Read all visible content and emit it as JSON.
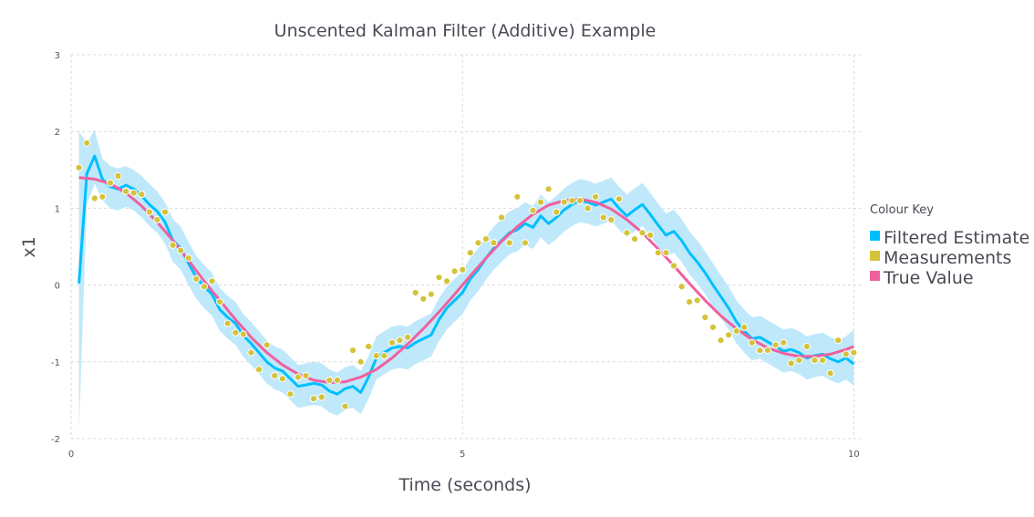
{
  "chart_data": {
    "type": "line",
    "title": "Unscented Kalman Filter (Additive) Example",
    "xlabel": "Time (seconds)",
    "ylabel": "x1",
    "xlim": [
      0,
      10.1
    ],
    "ylim": [
      -2,
      3
    ],
    "xticks": [
      0,
      5,
      10
    ],
    "yticks": [
      -2,
      -1,
      0,
      1,
      2,
      3
    ],
    "grid": true,
    "legend": {
      "title": "Colour Key",
      "placement": "right",
      "entries": [
        "Filtered Estimate",
        "Measurements",
        "True Value"
      ]
    },
    "colors": {
      "filtered": "#00bfff",
      "band": "#bfe9fb",
      "measurements": "#d4c33a",
      "true_value": "#f0609e"
    },
    "series": [
      {
        "name": "True Value",
        "type": "line",
        "x": [
          0.1,
          0.3,
          0.5,
          0.7,
          0.9,
          1.1,
          1.3,
          1.5,
          1.7,
          1.9,
          2.1,
          2.3,
          2.5,
          2.7,
          2.9,
          3.1,
          3.3,
          3.5,
          3.7,
          3.9,
          4.1,
          4.3,
          4.5,
          4.7,
          4.9,
          5.1,
          5.3,
          5.5,
          5.7,
          5.9,
          6.1,
          6.3,
          6.5,
          6.7,
          6.9,
          7.1,
          7.3,
          7.5,
          7.7,
          7.9,
          8.1,
          8.3,
          8.5,
          8.7,
          8.9,
          9.1,
          9.3,
          9.5,
          9.7,
          9.9,
          10.0
        ],
        "y": [
          1.4,
          1.38,
          1.32,
          1.2,
          1.03,
          0.82,
          0.58,
          0.32,
          0.05,
          -0.2,
          -0.45,
          -0.68,
          -0.88,
          -1.04,
          -1.16,
          -1.24,
          -1.27,
          -1.26,
          -1.2,
          -1.1,
          -0.95,
          -0.77,
          -0.57,
          -0.35,
          -0.12,
          0.12,
          0.35,
          0.57,
          0.76,
          0.92,
          1.04,
          1.1,
          1.12,
          1.08,
          0.99,
          0.85,
          0.68,
          0.47,
          0.25,
          0.02,
          -0.2,
          -0.4,
          -0.57,
          -0.71,
          -0.82,
          -0.89,
          -0.93,
          -0.93,
          -0.9,
          -0.84,
          -0.8
        ]
      },
      {
        "name": "Filtered Estimate",
        "type": "line",
        "x": [
          0.1,
          0.2,
          0.3,
          0.4,
          0.5,
          0.6,
          0.7,
          0.8,
          0.9,
          1.0,
          1.1,
          1.2,
          1.3,
          1.4,
          1.5,
          1.6,
          1.7,
          1.8,
          1.9,
          2.0,
          2.1,
          2.2,
          2.3,
          2.4,
          2.5,
          2.6,
          2.7,
          2.8,
          2.9,
          3.0,
          3.1,
          3.2,
          3.3,
          3.4,
          3.5,
          3.6,
          3.7,
          3.8,
          3.9,
          4.0,
          4.1,
          4.2,
          4.3,
          4.4,
          4.5,
          4.6,
          4.7,
          4.8,
          4.9,
          5.0,
          5.1,
          5.2,
          5.3,
          5.4,
          5.5,
          5.6,
          5.7,
          5.8,
          5.9,
          6.0,
          6.1,
          6.2,
          6.3,
          6.4,
          6.5,
          6.6,
          6.7,
          6.8,
          6.9,
          7.0,
          7.1,
          7.2,
          7.3,
          7.4,
          7.5,
          7.6,
          7.7,
          7.8,
          7.9,
          8.0,
          8.1,
          8.2,
          8.3,
          8.4,
          8.5,
          8.6,
          8.7,
          8.8,
          8.9,
          9.0,
          9.1,
          9.2,
          9.3,
          9.4,
          9.5,
          9.6,
          9.7,
          9.8,
          9.9,
          10.0
        ],
        "y": [
          0.02,
          1.45,
          1.68,
          1.38,
          1.28,
          1.25,
          1.3,
          1.25,
          1.16,
          1.05,
          0.96,
          0.82,
          0.58,
          0.48,
          0.28,
          0.1,
          -0.02,
          -0.12,
          -0.32,
          -0.42,
          -0.5,
          -0.66,
          -0.76,
          -0.88,
          -1.0,
          -1.08,
          -1.12,
          -1.22,
          -1.32,
          -1.3,
          -1.28,
          -1.3,
          -1.38,
          -1.42,
          -1.35,
          -1.32,
          -1.4,
          -1.2,
          -0.95,
          -0.88,
          -0.82,
          -0.8,
          -0.82,
          -0.75,
          -0.7,
          -0.65,
          -0.45,
          -0.3,
          -0.2,
          -0.1,
          0.08,
          0.2,
          0.35,
          0.48,
          0.58,
          0.68,
          0.72,
          0.8,
          0.75,
          0.9,
          0.8,
          0.88,
          0.98,
          1.05,
          1.1,
          1.08,
          1.04,
          1.08,
          1.12,
          1.0,
          0.9,
          0.98,
          1.05,
          0.92,
          0.78,
          0.65,
          0.7,
          0.58,
          0.42,
          0.3,
          0.16,
          0.0,
          -0.15,
          -0.3,
          -0.48,
          -0.6,
          -0.7,
          -0.68,
          -0.74,
          -0.8,
          -0.86,
          -0.84,
          -0.88,
          -0.95,
          -0.92,
          -0.9,
          -0.96,
          -1.0,
          -0.95,
          -1.03
        ]
      },
      {
        "name": "Measurements",
        "type": "scatter",
        "x": [
          0.1,
          0.2,
          0.3,
          0.4,
          0.5,
          0.6,
          0.7,
          0.8,
          0.9,
          1.0,
          1.1,
          1.2,
          1.3,
          1.4,
          1.5,
          1.6,
          1.7,
          1.8,
          1.9,
          2.0,
          2.1,
          2.2,
          2.3,
          2.4,
          2.5,
          2.6,
          2.7,
          2.8,
          2.9,
          3.0,
          3.1,
          3.2,
          3.3,
          3.4,
          3.5,
          3.6,
          3.7,
          3.8,
          3.9,
          4.0,
          4.1,
          4.2,
          4.3,
          4.4,
          4.5,
          4.6,
          4.7,
          4.8,
          4.9,
          5.0,
          5.1,
          5.2,
          5.3,
          5.4,
          5.5,
          5.6,
          5.7,
          5.8,
          5.9,
          6.0,
          6.1,
          6.2,
          6.3,
          6.4,
          6.5,
          6.6,
          6.7,
          6.8,
          6.9,
          7.0,
          7.1,
          7.2,
          7.3,
          7.4,
          7.5,
          7.6,
          7.7,
          7.8,
          7.9,
          8.0,
          8.1,
          8.2,
          8.3,
          8.4,
          8.5,
          8.6,
          8.7,
          8.8,
          8.9,
          9.0,
          9.1,
          9.2,
          9.3,
          9.4,
          9.5,
          9.6,
          9.7,
          9.8,
          9.9,
          10.0
        ],
        "y": [
          1.53,
          1.85,
          1.13,
          1.15,
          1.33,
          1.42,
          1.22,
          1.2,
          1.18,
          0.95,
          0.85,
          0.95,
          0.52,
          0.45,
          0.35,
          0.08,
          -0.02,
          0.05,
          -0.22,
          -0.5,
          -0.62,
          -0.64,
          -0.88,
          -1.1,
          -0.78,
          -1.18,
          -1.22,
          -1.42,
          -1.2,
          -1.18,
          -1.48,
          -1.46,
          -1.24,
          -1.24,
          -1.58,
          -0.85,
          -1.0,
          -0.8,
          -0.92,
          -0.92,
          -0.75,
          -0.72,
          -0.68,
          -0.1,
          -0.18,
          -0.12,
          0.1,
          0.05,
          0.18,
          0.2,
          0.42,
          0.55,
          0.6,
          0.55,
          0.88,
          0.55,
          1.15,
          0.55,
          0.97,
          1.08,
          1.25,
          0.95,
          1.08,
          1.1,
          1.1,
          1.0,
          1.15,
          0.88,
          0.85,
          1.12,
          0.68,
          0.6,
          0.68,
          0.65,
          0.42,
          0.42,
          0.25,
          -0.02,
          -0.22,
          -0.2,
          -0.42,
          -0.55,
          -0.72,
          -0.65,
          -0.6,
          -0.55,
          -0.75,
          -0.85,
          -0.85,
          -0.78,
          -0.75,
          -1.02,
          -0.98,
          -0.8,
          -0.98,
          -0.98,
          -1.15,
          -0.72,
          -0.9,
          -0.88
        ]
      },
      {
        "name": "Uncertainty Band",
        "type": "area",
        "x": [
          0.1,
          0.2,
          0.3,
          0.4,
          0.5,
          0.6,
          0.7,
          0.8,
          0.9,
          1.0,
          1.1,
          1.2,
          1.3,
          1.4,
          1.5,
          1.6,
          1.7,
          1.8,
          1.9,
          2.0,
          2.1,
          2.2,
          2.3,
          2.4,
          2.5,
          2.6,
          2.7,
          2.8,
          2.9,
          3.0,
          3.1,
          3.2,
          3.3,
          3.4,
          3.5,
          3.6,
          3.7,
          3.8,
          3.9,
          4.0,
          4.1,
          4.2,
          4.3,
          4.4,
          4.5,
          4.6,
          4.7,
          4.8,
          4.9,
          5.0,
          5.1,
          5.2,
          5.3,
          5.4,
          5.5,
          5.6,
          5.7,
          5.8,
          5.9,
          6.0,
          6.1,
          6.2,
          6.3,
          6.4,
          6.5,
          6.6,
          6.7,
          6.8,
          6.9,
          7.0,
          7.1,
          7.2,
          7.3,
          7.4,
          7.5,
          7.6,
          7.7,
          7.8,
          7.9,
          8.0,
          8.1,
          8.2,
          8.3,
          8.4,
          8.5,
          8.6,
          8.7,
          8.8,
          8.9,
          9.0,
          9.1,
          9.2,
          9.3,
          9.4,
          9.5,
          9.6,
          9.7,
          9.8,
          9.9,
          10.0
        ],
        "upper": [
          2.0,
          1.85,
          2.02,
          1.65,
          1.55,
          1.52,
          1.55,
          1.5,
          1.42,
          1.32,
          1.22,
          1.08,
          0.86,
          0.76,
          0.56,
          0.38,
          0.26,
          0.16,
          -0.04,
          -0.14,
          -0.22,
          -0.38,
          -0.48,
          -0.6,
          -0.72,
          -0.8,
          -0.84,
          -0.94,
          -1.04,
          -1.02,
          -1.0,
          -1.02,
          -1.1,
          -1.14,
          -1.07,
          -1.04,
          -1.12,
          -0.92,
          -0.67,
          -0.6,
          -0.54,
          -0.52,
          -0.54,
          -0.47,
          -0.42,
          -0.37,
          -0.17,
          -0.02,
          0.08,
          0.18,
          0.36,
          0.48,
          0.63,
          0.76,
          0.86,
          0.96,
          1.0,
          1.08,
          1.03,
          1.18,
          1.08,
          1.16,
          1.26,
          1.33,
          1.38,
          1.36,
          1.32,
          1.36,
          1.4,
          1.28,
          1.18,
          1.26,
          1.33,
          1.2,
          1.06,
          0.93,
          0.98,
          0.86,
          0.7,
          0.58,
          0.44,
          0.28,
          0.13,
          -0.02,
          -0.2,
          -0.32,
          -0.42,
          -0.4,
          -0.46,
          -0.52,
          -0.58,
          -0.56,
          -0.6,
          -0.67,
          -0.64,
          -0.62,
          -0.68,
          -0.72,
          -0.67,
          -0.58
        ],
        "lower": [
          -1.9,
          1.05,
          1.32,
          1.1,
          1.0,
          0.97,
          1.02,
          0.97,
          0.88,
          0.77,
          0.68,
          0.54,
          0.3,
          0.2,
          0.0,
          -0.18,
          -0.3,
          -0.4,
          -0.6,
          -0.7,
          -0.78,
          -0.94,
          -1.04,
          -1.16,
          -1.28,
          -1.36,
          -1.4,
          -1.5,
          -1.6,
          -1.58,
          -1.56,
          -1.58,
          -1.66,
          -1.7,
          -1.63,
          -1.6,
          -1.68,
          -1.48,
          -1.23,
          -1.16,
          -1.1,
          -1.08,
          -1.1,
          -1.03,
          -0.98,
          -0.93,
          -0.73,
          -0.58,
          -0.48,
          -0.38,
          -0.2,
          -0.08,
          0.07,
          0.2,
          0.3,
          0.4,
          0.44,
          0.52,
          0.47,
          0.62,
          0.52,
          0.6,
          0.7,
          0.77,
          0.82,
          0.8,
          0.76,
          0.8,
          0.84,
          0.72,
          0.62,
          0.7,
          0.77,
          0.64,
          0.5,
          0.37,
          0.42,
          0.3,
          0.14,
          0.02,
          -0.12,
          -0.28,
          -0.43,
          -0.58,
          -0.76,
          -0.88,
          -0.98,
          -0.96,
          -1.02,
          -1.08,
          -1.14,
          -1.12,
          -1.16,
          -1.23,
          -1.2,
          -1.18,
          -1.24,
          -1.28,
          -1.23,
          -1.31
        ]
      }
    ]
  }
}
